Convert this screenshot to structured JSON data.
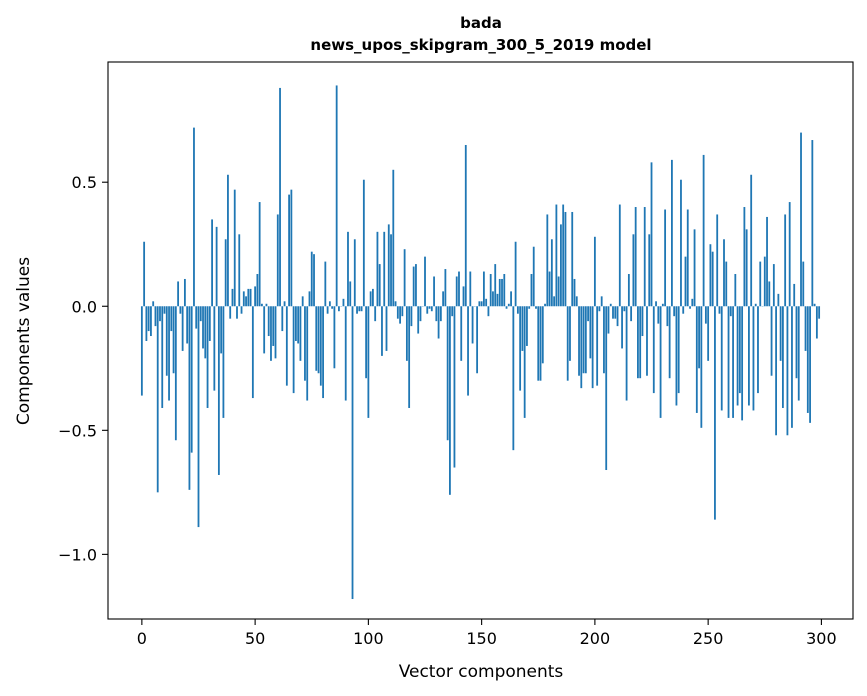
{
  "chart_data": {
    "type": "bar",
    "title": "bada",
    "subtitle": "news_upos_skipgram_300_5_2019 model",
    "xlabel": "Vector components",
    "ylabel": "Components values",
    "xlim": [
      -14.95,
      313.95
    ],
    "ylim": [
      -1.2605,
      0.9845
    ],
    "xticks": [
      0,
      50,
      100,
      150,
      200,
      250,
      300
    ],
    "xtick_labels": [
      "0",
      "50",
      "100",
      "150",
      "200",
      "250",
      "300"
    ],
    "yticks": [
      -1.0,
      -0.5,
      0.0,
      0.5
    ],
    "ytick_labels": [
      "−1.0",
      "−0.5",
      "0.0",
      "0.5"
    ],
    "bar_color": "#1f77b4",
    "grid": false,
    "values": [
      -0.36,
      0.26,
      -0.14,
      -0.1,
      -0.12,
      0.02,
      -0.08,
      -0.75,
      -0.06,
      -0.41,
      -0.03,
      -0.28,
      -0.38,
      -0.1,
      -0.27,
      -0.54,
      0.1,
      -0.03,
      -0.18,
      0.11,
      -0.15,
      -0.74,
      -0.59,
      0.72,
      -0.09,
      -0.89,
      -0.06,
      -0.17,
      -0.21,
      -0.41,
      -0.14,
      0.35,
      -0.34,
      0.32,
      -0.68,
      -0.19,
      -0.45,
      0.27,
      0.53,
      -0.05,
      0.07,
      0.47,
      -0.05,
      0.29,
      -0.03,
      0.06,
      0.04,
      0.07,
      0.07,
      -0.37,
      0.08,
      0.13,
      0.42,
      0.01,
      -0.19,
      0.01,
      -0.12,
      -0.22,
      -0.16,
      -0.21,
      0.37,
      0.88,
      -0.1,
      0.02,
      -0.32,
      0.45,
      0.47,
      -0.35,
      -0.14,
      -0.15,
      -0.22,
      0.04,
      -0.3,
      -0.38,
      0.06,
      0.22,
      0.21,
      -0.26,
      -0.27,
      -0.32,
      -0.37,
      0.18,
      -0.03,
      0.02,
      -0.01,
      -0.25,
      0.89,
      -0.02,
      0.0,
      0.03,
      -0.38,
      0.3,
      0.1,
      -1.18,
      0.27,
      -0.03,
      -0.02,
      -0.02,
      0.51,
      -0.29,
      -0.45,
      0.06,
      0.07,
      -0.06,
      0.3,
      0.17,
      -0.2,
      0.3,
      -0.18,
      0.33,
      0.29,
      0.55,
      0.02,
      -0.05,
      -0.07,
      -0.04,
      0.23,
      -0.22,
      -0.41,
      -0.08,
      0.16,
      0.17,
      -0.11,
      -0.06,
      0.0,
      0.2,
      -0.03,
      -0.01,
      -0.02,
      0.12,
      -0.06,
      -0.13,
      -0.06,
      0.06,
      0.15,
      -0.54,
      -0.76,
      -0.04,
      -0.65,
      0.12,
      0.14,
      -0.22,
      0.08,
      0.65,
      -0.36,
      0.14,
      -0.15,
      0.0,
      -0.27,
      0.02,
      0.02,
      0.14,
      0.03,
      -0.04,
      0.13,
      0.06,
      0.17,
      0.05,
      0.11,
      0.11,
      0.13,
      -0.01,
      0.01,
      0.06,
      -0.58,
      0.26,
      -0.03,
      -0.34,
      -0.18,
      -0.45,
      -0.16,
      -0.01,
      0.13,
      0.24,
      -0.01,
      -0.3,
      -0.3,
      -0.23,
      0.01,
      0.37,
      0.14,
      0.27,
      0.04,
      0.41,
      0.12,
      0.33,
      0.41,
      0.38,
      -0.3,
      -0.22,
      0.38,
      0.11,
      0.04,
      -0.28,
      -0.33,
      -0.27,
      -0.27,
      -0.06,
      -0.21,
      -0.33,
      0.28,
      -0.32,
      -0.02,
      0.04,
      -0.27,
      -0.66,
      -0.11,
      0.01,
      -0.05,
      -0.05,
      -0.08,
      0.41,
      -0.17,
      -0.02,
      -0.38,
      0.13,
      -0.06,
      0.29,
      0.4,
      -0.29,
      -0.29,
      -0.12,
      0.4,
      -0.28,
      0.29,
      0.58,
      -0.35,
      0.02,
      -0.07,
      -0.45,
      0.01,
      0.39,
      -0.08,
      -0.29,
      0.59,
      -0.04,
      -0.4,
      -0.35,
      0.51,
      -0.03,
      0.2,
      0.39,
      -0.01,
      0.03,
      0.31,
      -0.43,
      -0.25,
      -0.49,
      0.61,
      -0.07,
      -0.22,
      0.25,
      0.22,
      -0.86,
      0.37,
      -0.03,
      -0.42,
      0.27,
      0.18,
      -0.45,
      -0.04,
      -0.45,
      0.13,
      -0.4,
      -0.35,
      -0.46,
      0.4,
      0.31,
      -0.4,
      0.53,
      -0.42,
      0.01,
      -0.35,
      0.18,
      0.0,
      0.2,
      0.36,
      0.1,
      -0.28,
      0.17,
      -0.52,
      0.05,
      -0.22,
      -0.41,
      0.37,
      -0.52,
      0.42,
      -0.49,
      0.09,
      -0.29,
      -0.38,
      0.7,
      0.18,
      -0.18,
      -0.43,
      -0.47,
      0.67,
      0.01,
      -0.13,
      -0.05
    ]
  }
}
